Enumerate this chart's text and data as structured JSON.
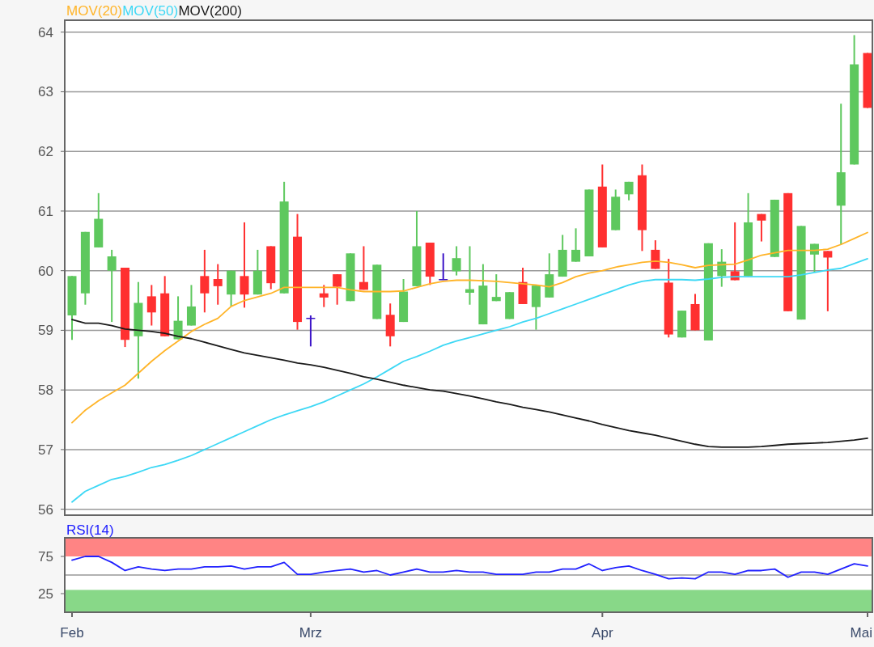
{
  "chart_data": [
    {
      "type": "candlestick",
      "categories": [
        null,
        null,
        null,
        null,
        null,
        null,
        null,
        null,
        null,
        null,
        null,
        null,
        null,
        null,
        null,
        null,
        null,
        null,
        null,
        null,
        null,
        null,
        null,
        null,
        null,
        null,
        null,
        null,
        null,
        null,
        null,
        null,
        null,
        null,
        null,
        null,
        null,
        null,
        null,
        null,
        null,
        null,
        null,
        null,
        null,
        null,
        null,
        null,
        null,
        null,
        null,
        null,
        null,
        null,
        null,
        null,
        null,
        null,
        null,
        null,
        null
      ],
      "ohlc": [
        [
          59.25,
          59.91,
          58.84,
          59.91
        ],
        [
          59.62,
          60.65,
          59.43,
          60.65
        ],
        [
          60.39,
          61.3,
          60.39,
          60.87
        ],
        [
          60.0,
          60.35,
          59.14,
          60.24
        ],
        [
          60.05,
          60.05,
          58.72,
          58.84
        ],
        [
          58.9,
          59.81,
          58.19,
          59.46
        ],
        [
          59.57,
          59.76,
          59.08,
          59.3
        ],
        [
          59.62,
          59.91,
          58.9,
          58.9
        ],
        [
          58.85,
          59.57,
          58.85,
          59.16
        ],
        [
          59.08,
          59.76,
          59.08,
          59.4
        ],
        [
          59.91,
          60.35,
          59.3,
          59.62
        ],
        [
          59.86,
          60.11,
          59.43,
          59.74
        ],
        [
          59.6,
          60.0,
          59.4,
          60.0
        ],
        [
          59.91,
          60.81,
          59.38,
          59.6
        ],
        [
          59.6,
          60.35,
          59.6,
          60.0
        ],
        [
          60.41,
          60.41,
          59.69,
          59.79
        ],
        [
          59.62,
          61.49,
          59.62,
          61.16
        ],
        [
          60.57,
          60.95,
          59.01,
          59.14
        ],
        [
          59.21,
          59.25,
          58.73,
          59.21
        ],
        [
          59.62,
          59.76,
          59.39,
          59.55
        ],
        [
          59.94,
          59.94,
          59.43,
          59.73
        ],
        [
          59.49,
          60.29,
          59.49,
          60.29
        ],
        [
          59.81,
          60.41,
          59.68,
          59.68
        ],
        [
          59.19,
          60.1,
          59.19,
          60.1
        ],
        [
          59.26,
          59.45,
          58.73,
          58.9
        ],
        [
          59.14,
          59.86,
          59.14,
          59.65
        ],
        [
          59.74,
          61.0,
          59.74,
          60.41
        ],
        [
          60.47,
          60.47,
          59.76,
          59.9
        ],
        [
          59.86,
          60.29,
          59.86,
          59.86
        ],
        [
          59.99,
          60.41,
          59.92,
          60.21
        ],
        [
          59.63,
          60.41,
          59.43,
          59.69
        ],
        [
          59.1,
          60.11,
          59.1,
          59.75
        ],
        [
          59.49,
          59.94,
          59.49,
          59.56
        ],
        [
          59.19,
          59.64,
          59.19,
          59.64
        ],
        [
          59.81,
          60.05,
          59.44,
          59.44
        ],
        [
          59.39,
          59.75,
          59.01,
          59.75
        ],
        [
          59.55,
          60.29,
          59.55,
          59.94
        ],
        [
          59.9,
          60.6,
          59.9,
          60.35
        ],
        [
          60.15,
          60.71,
          60.15,
          60.35
        ],
        [
          60.24,
          61.36,
          60.24,
          61.36
        ],
        [
          61.41,
          61.78,
          60.39,
          60.39
        ],
        [
          60.68,
          61.36,
          60.68,
          61.24
        ],
        [
          61.28,
          61.49,
          61.18,
          61.49
        ],
        [
          61.6,
          61.78,
          60.33,
          60.68
        ],
        [
          60.35,
          60.51,
          60.03,
          60.03
        ],
        [
          59.8,
          60.2,
          58.88,
          58.93
        ],
        [
          58.88,
          59.33,
          58.88,
          59.33
        ],
        [
          59.44,
          59.61,
          59.0,
          59.0
        ],
        [
          58.83,
          60.46,
          58.83,
          60.46
        ],
        [
          59.91,
          60.36,
          59.73,
          60.15
        ],
        [
          59.99,
          60.81,
          59.84,
          59.84
        ],
        [
          59.91,
          61.3,
          59.91,
          60.81
        ],
        [
          60.95,
          60.95,
          60.49,
          60.84
        ],
        [
          60.23,
          61.19,
          60.23,
          61.19
        ],
        [
          61.3,
          61.3,
          59.32,
          59.32
        ],
        [
          59.18,
          60.75,
          59.18,
          60.75
        ],
        [
          60.27,
          60.45,
          59.98,
          60.45
        ],
        [
          60.33,
          60.33,
          59.32,
          60.22
        ],
        [
          61.09,
          62.8,
          60.43,
          61.65
        ],
        [
          61.78,
          63.95,
          61.78,
          63.46
        ],
        [
          63.65,
          63.65,
          62.73,
          62.73
        ]
      ],
      "colors": [
        "#5ec85e",
        "#5ec85e",
        "#5ec85e",
        "#5ec85e",
        "#ff3030",
        "#5ec85e",
        "#ff3030",
        "#ff3030",
        "#5ec85e",
        "#5ec85e",
        "#ff3030",
        "#ff3030",
        "#5ec85e",
        "#ff3030",
        "#5ec85e",
        "#ff3030",
        "#5ec85e",
        "#ff3030",
        "#3c14c8",
        "#ff3030",
        "#ff3030",
        "#5ec85e",
        "#ff3030",
        "#5ec85e",
        "#ff3030",
        "#5ec85e",
        "#5ec85e",
        "#ff3030",
        "#3c14c8",
        "#5ec85e",
        "#5ec85e",
        "#5ec85e",
        "#5ec85e",
        "#5ec85e",
        "#ff3030",
        "#5ec85e",
        "#5ec85e",
        "#5ec85e",
        "#5ec85e",
        "#5ec85e",
        "#ff3030",
        "#5ec85e",
        "#5ec85e",
        "#ff3030",
        "#ff3030",
        "#ff3030",
        "#5ec85e",
        "#ff3030",
        "#5ec85e",
        "#5ec85e",
        "#ff3030",
        "#5ec85e",
        "#ff3030",
        "#5ec85e",
        "#ff3030",
        "#5ec85e",
        "#5ec85e",
        "#ff3030",
        "#5ec85e",
        "#5ec85e",
        "#ff3030"
      ],
      "series": [
        {
          "name": "MOV(20)",
          "type": "line",
          "color": "#ffb428",
          "values": [
            57.45,
            57.66,
            57.82,
            57.95,
            58.08,
            58.28,
            58.48,
            58.66,
            58.82,
            58.98,
            59.1,
            59.2,
            59.4,
            59.5,
            59.56,
            59.62,
            59.72,
            59.72,
            59.72,
            59.72,
            59.72,
            59.68,
            59.65,
            59.65,
            59.65,
            59.66,
            59.72,
            59.78,
            59.82,
            59.84,
            59.84,
            59.83,
            59.82,
            59.8,
            59.78,
            59.76,
            59.73,
            59.8,
            59.9,
            59.96,
            60.0,
            60.06,
            60.1,
            60.14,
            60.16,
            60.14,
            60.1,
            60.05,
            60.09,
            60.1,
            60.11,
            60.18,
            60.26,
            60.3,
            60.34,
            60.34,
            60.34,
            60.36,
            60.44,
            60.54,
            60.64
          ]
        },
        {
          "name": "MOV(50)",
          "type": "line",
          "color": "#3dd8f5",
          "values": [
            56.12,
            56.3,
            56.4,
            56.5,
            56.55,
            56.62,
            56.7,
            56.75,
            56.82,
            56.9,
            57.0,
            57.1,
            57.2,
            57.3,
            57.4,
            57.5,
            57.58,
            57.65,
            57.72,
            57.8,
            57.9,
            58.0,
            58.1,
            58.22,
            58.35,
            58.48,
            58.56,
            58.65,
            58.75,
            58.82,
            58.88,
            58.94,
            59.0,
            59.06,
            59.14,
            59.2,
            59.28,
            59.36,
            59.44,
            59.52,
            59.6,
            59.68,
            59.76,
            59.82,
            59.85,
            59.85,
            59.85,
            59.84,
            59.86,
            59.89,
            59.9,
            59.9,
            59.9,
            59.9,
            59.9,
            59.93,
            59.97,
            60.01,
            60.04,
            60.12,
            60.2
          ]
        },
        {
          "name": "MOV(200)",
          "type": "line",
          "color": "#1a1a1a",
          "values": [
            59.18,
            59.12,
            59.12,
            59.08,
            59.02,
            59.0,
            58.98,
            58.95,
            58.9,
            58.86,
            58.8,
            58.74,
            58.68,
            58.62,
            58.58,
            58.54,
            58.5,
            58.45,
            58.42,
            58.38,
            58.33,
            58.28,
            58.22,
            58.18,
            58.13,
            58.08,
            58.04,
            58.0,
            57.98,
            57.94,
            57.9,
            57.85,
            57.8,
            57.76,
            57.71,
            57.67,
            57.63,
            57.58,
            57.53,
            57.48,
            57.42,
            57.37,
            57.32,
            57.28,
            57.24,
            57.19,
            57.14,
            57.09,
            57.05,
            57.04,
            57.04,
            57.04,
            57.05,
            57.07,
            57.09,
            57.1,
            57.11,
            57.12,
            57.14,
            57.16,
            57.19
          ]
        }
      ],
      "ylim": [
        55.9,
        64.2
      ],
      "yticks": [
        56,
        57,
        58,
        59,
        60,
        61,
        62,
        63,
        64
      ],
      "grid": "y",
      "tick_labels": "y",
      "legend": "top left"
    },
    {
      "type": "line",
      "title": "RSI(14)",
      "categories": [
        "Feb",
        null,
        null,
        null,
        null,
        null,
        null,
        null,
        null,
        null,
        null,
        null,
        null,
        null,
        null,
        null,
        null,
        null,
        "Mrz",
        null,
        null,
        null,
        null,
        null,
        null,
        null,
        null,
        null,
        null,
        null,
        null,
        null,
        null,
        null,
        null,
        null,
        null,
        null,
        null,
        null,
        "Apr",
        null,
        null,
        null,
        null,
        null,
        null,
        null,
        null,
        null,
        null,
        null,
        null,
        null,
        null,
        null,
        null,
        null,
        null,
        null,
        "Mai"
      ],
      "series": [
        {
          "color": "#2020ff",
          "values": [
            70,
            75,
            75,
            67,
            56,
            61,
            58,
            56,
            58,
            58,
            61,
            61,
            62,
            58,
            61,
            61,
            67,
            51,
            51,
            54,
            56,
            58,
            54,
            56,
            50,
            54,
            58,
            54,
            54,
            56,
            54,
            54,
            51,
            51,
            51,
            54,
            54,
            58,
            58,
            65,
            56,
            60,
            62,
            56,
            51,
            45,
            46,
            45,
            54,
            54,
            51,
            56,
            56,
            58,
            47,
            54,
            54,
            51,
            58,
            65,
            62
          ]
        }
      ],
      "ylim": [
        0,
        100
      ],
      "yticks": [
        25,
        75
      ],
      "bands": [
        {
          "axis": "y",
          "from": 75,
          "to": 100,
          "color": "#ff8484"
        },
        {
          "axis": "y",
          "from": 0,
          "to": 30,
          "color": "#88d888"
        }
      ],
      "ref_lines": [
        {
          "axis": "y",
          "value": 50,
          "color": "#999999"
        }
      ]
    }
  ]
}
